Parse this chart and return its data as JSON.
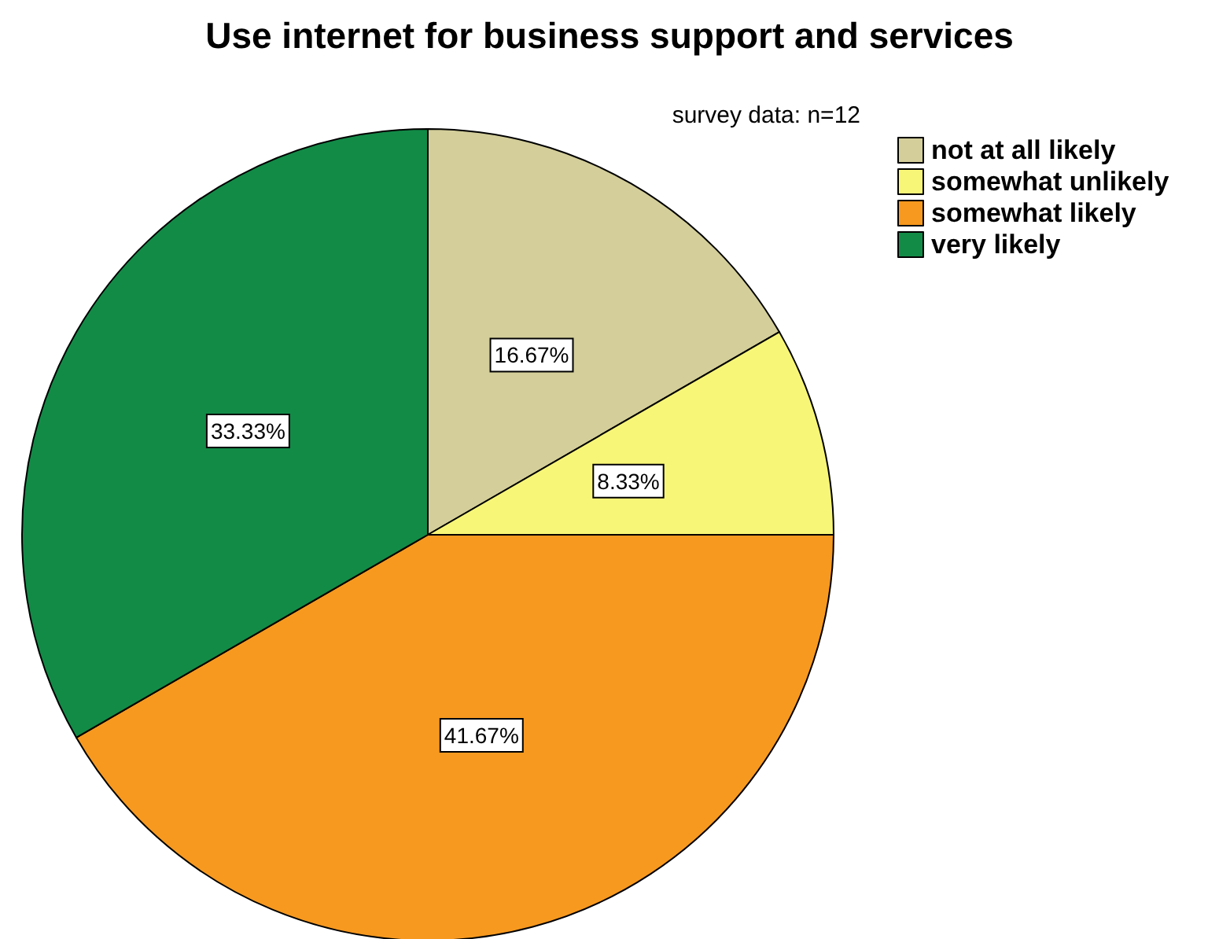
{
  "chart_data": {
    "type": "pie",
    "title": "Use internet for business support and services",
    "categories": [
      "not at all likely",
      "somewhat unlikely",
      "somewhat likely",
      "very likely"
    ],
    "values": [
      16.67,
      8.33,
      41.67,
      33.33
    ],
    "value_labels": [
      "16.67%",
      "8.33%",
      "41.67%",
      "33.33%"
    ],
    "colors": [
      "#d3ce9a",
      "#f8f677",
      "#f7991f",
      "#128b47"
    ],
    "annotations": [
      "survey data: n=12"
    ],
    "legend": "top right"
  }
}
